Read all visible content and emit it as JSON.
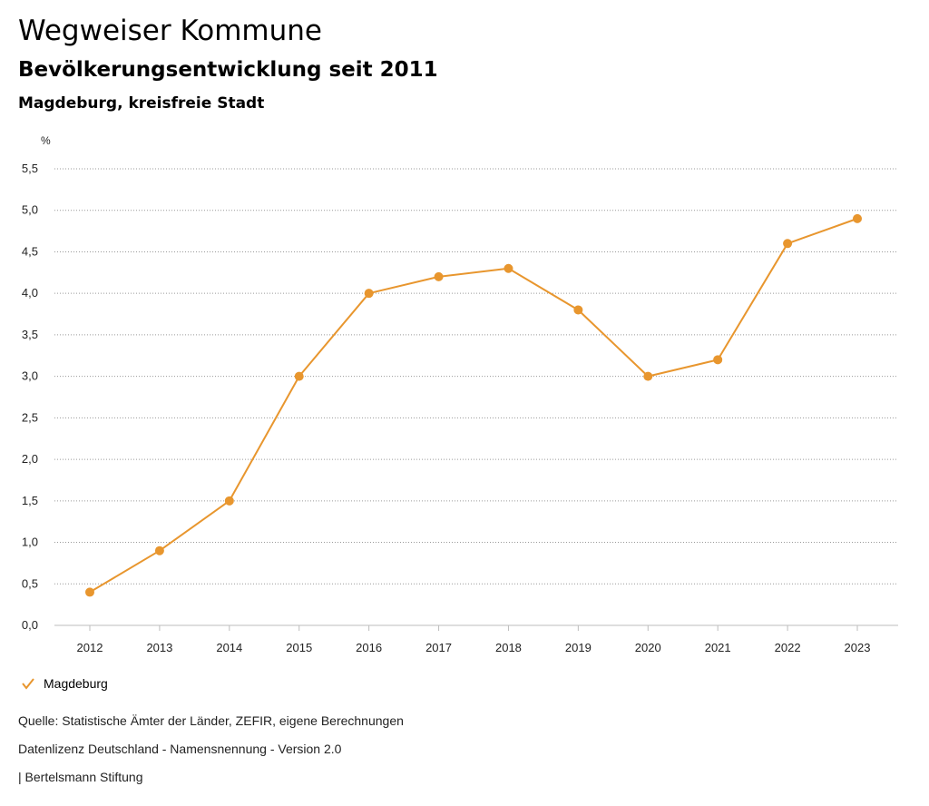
{
  "header": {
    "title": "Wegweiser Kommune",
    "subtitle": "Bevölkerungsentwicklung seit 2011",
    "region": "Magdeburg, kreisfreie Stadt"
  },
  "chart_data": {
    "type": "line",
    "ylabel": "%",
    "xlabel": "",
    "ylim": [
      0,
      5.5
    ],
    "yticks": [
      "0,0",
      "0,5",
      "1,0",
      "1,5",
      "2,0",
      "2,5",
      "3,0",
      "3,5",
      "4,0",
      "4,5",
      "5,0",
      "5,5"
    ],
    "ytick_values": [
      0,
      0.5,
      1.0,
      1.5,
      2.0,
      2.5,
      3.0,
      3.5,
      4.0,
      4.5,
      5.0,
      5.5
    ],
    "categories": [
      "2012",
      "2013",
      "2014",
      "2015",
      "2016",
      "2017",
      "2018",
      "2019",
      "2020",
      "2021",
      "2022",
      "2023"
    ],
    "series": [
      {
        "name": "Magdeburg",
        "color": "#e8962e",
        "values": [
          0.4,
          0.9,
          1.5,
          3.0,
          4.0,
          4.2,
          4.3,
          3.8,
          3.0,
          3.2,
          4.6,
          4.9
        ]
      }
    ],
    "grid": true,
    "legend": "bottom-left"
  },
  "legend": {
    "label": "Magdeburg",
    "icon": "check-icon"
  },
  "footer": {
    "source": "Quelle: Statistische Ämter der Länder, ZEFIR, eigene Berechnungen",
    "license": "Datenlizenz Deutschland - Namensnennung - Version 2.0",
    "publisher": "| Bertelsmann Stiftung"
  }
}
